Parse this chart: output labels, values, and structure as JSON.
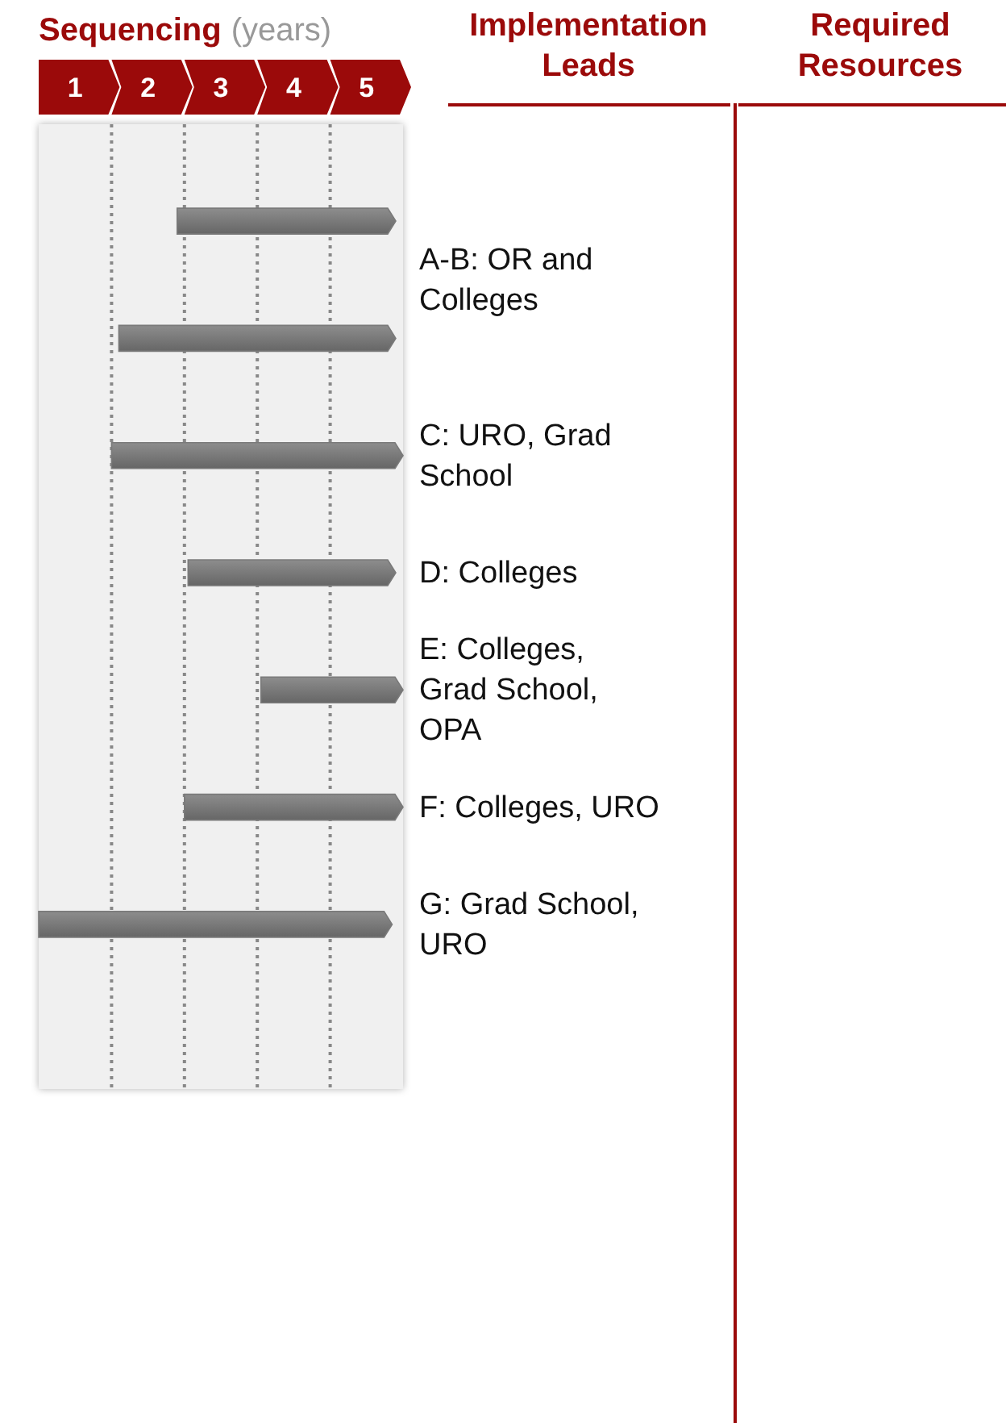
{
  "chart_data": {
    "type": "bar",
    "orientation": "horizontal",
    "title": "Sequencing",
    "xlabel": "(years)",
    "categories": [
      null,
      null,
      null,
      null,
      null,
      null,
      null
    ],
    "base": [
      1.9,
      1.1,
      1.0,
      2.05,
      3.05,
      2.0,
      0
    ],
    "values": [
      3.0,
      3.8,
      4.0,
      2.85,
      1.95,
      3.0,
      4.85
    ],
    "color": "#7a7a7a",
    "xlim": [
      0,
      5
    ],
    "xticks": [
      {
        "value": 0.5,
        "label": "1"
      },
      {
        "value": 1.5,
        "label": "2"
      },
      {
        "value": 2.5,
        "label": "3"
      },
      {
        "value": 3.5,
        "label": "4"
      },
      {
        "value": 4.5,
        "label": "5"
      }
    ],
    "tick_labels": "x",
    "ref_lines": [
      {
        "axis": "x",
        "value": 1,
        "line_style": "dotted",
        "color": "#888888"
      },
      {
        "axis": "x",
        "value": 2,
        "line_style": "dotted",
        "color": "#888888"
      },
      {
        "axis": "x",
        "value": 3,
        "line_style": "dotted",
        "color": "#888888"
      },
      {
        "axis": "x",
        "value": 4,
        "line_style": "dotted",
        "color": "#888888"
      }
    ],
    "annotations": [
      "Implementation Leads",
      "Required Resources",
      "A-B: OR and Colleges",
      "C: URO, Grad School",
      "D: Colleges",
      "E: Colleges, Grad School, OPA",
      "F: Colleges, URO",
      "G: Grad School, URO"
    ]
  }
}
